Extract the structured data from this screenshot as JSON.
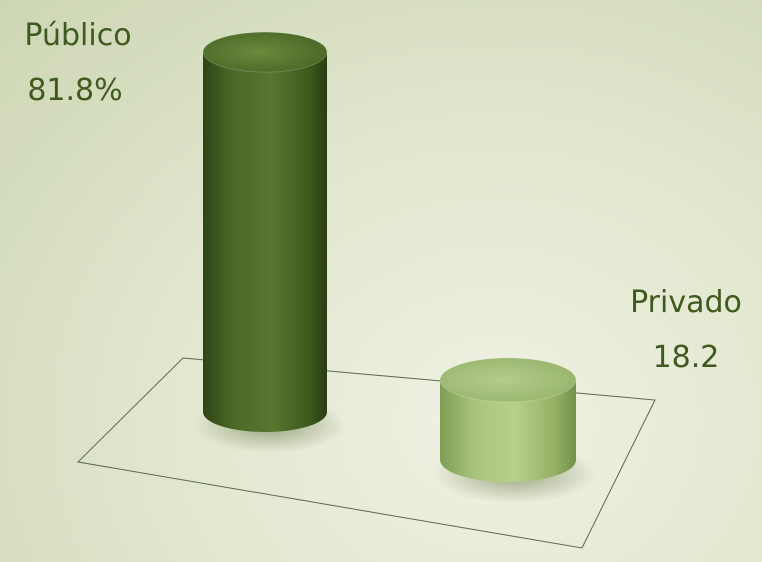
{
  "chart_data": {
    "type": "bar",
    "style": "3d-cylinder",
    "categories": [
      "Público",
      "Privado"
    ],
    "values": [
      81.8,
      18.2
    ],
    "value_labels": [
      "81.8%",
      "18.2"
    ],
    "colors": [
      "#4e6a2a",
      "#a3be75"
    ],
    "title": "",
    "xlabel": "",
    "ylabel": "",
    "ylim": [
      0,
      100
    ],
    "grid": false,
    "legend": "none"
  }
}
